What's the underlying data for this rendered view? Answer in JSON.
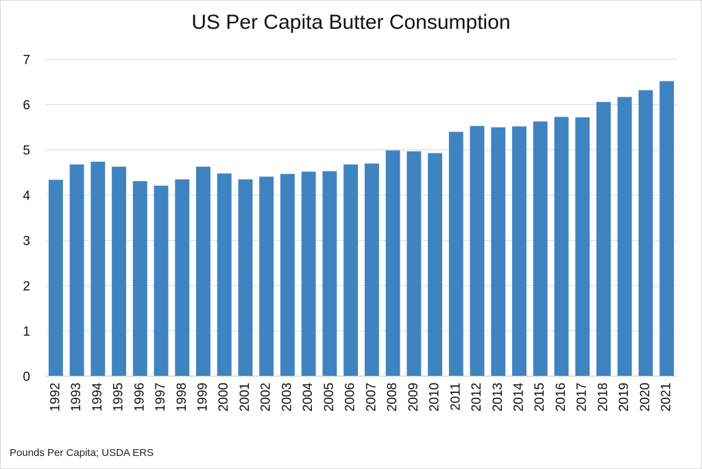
{
  "chart_data": {
    "type": "bar",
    "title": "US Per Capita Butter Consumption",
    "xlabel": "",
    "ylabel": "",
    "categories": [
      "1992",
      "1993",
      "1994",
      "1995",
      "1996",
      "1997",
      "1998",
      "1999",
      "2000",
      "2001",
      "2002",
      "2003",
      "2004",
      "2005",
      "2006",
      "2007",
      "2008",
      "2009",
      "2010",
      "2011",
      "2012",
      "2013",
      "2014",
      "2015",
      "2016",
      "2017",
      "2018",
      "2019",
      "2020",
      "2021"
    ],
    "values": [
      4.33,
      4.67,
      4.73,
      4.62,
      4.3,
      4.2,
      4.34,
      4.62,
      4.47,
      4.34,
      4.4,
      4.46,
      4.51,
      4.52,
      4.67,
      4.69,
      4.98,
      4.96,
      4.92,
      5.39,
      5.52,
      5.49,
      5.51,
      5.62,
      5.72,
      5.71,
      6.05,
      6.16,
      6.31,
      6.51
    ],
    "ylim": [
      0,
      7
    ],
    "yticks": [
      0,
      1,
      2,
      3,
      4,
      5,
      6,
      7
    ],
    "grid": true,
    "legend": "none",
    "bar_color": "#3F84C1",
    "grid_color": "#d9d9d9"
  },
  "footnote": "Pounds Per Capita; USDA ERS"
}
